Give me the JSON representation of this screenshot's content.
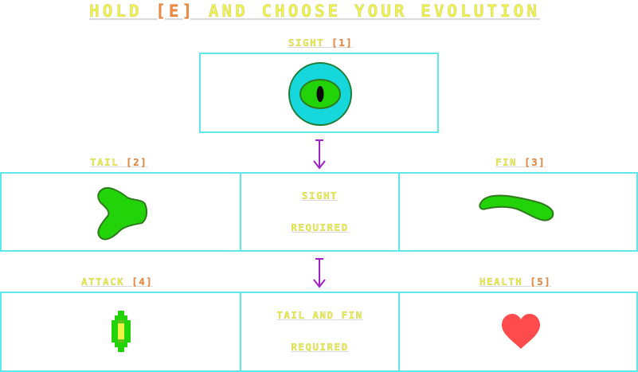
{
  "title": {
    "prefix": "HOLD ",
    "key": "[E]",
    "suffix": " AND CHOOSE YOUR EVOLUTION"
  },
  "options": [
    {
      "name": "SIGHT",
      "hotkey": "[1]",
      "icon": "eye-icon"
    },
    {
      "name": "TAIL",
      "hotkey": "[2]",
      "icon": "tail-icon"
    },
    {
      "name": "FIN",
      "hotkey": "[3]",
      "icon": "fin-icon"
    },
    {
      "name": "ATTACK",
      "hotkey": "[4]",
      "icon": "spike-icon"
    },
    {
      "name": "HEALTH",
      "hotkey": "[5]",
      "icon": "heart-icon"
    }
  ],
  "requirements": {
    "row2": [
      "SIGHT",
      "REQUIRED"
    ],
    "row3": [
      "TAIL AND FIN",
      "REQUIRED"
    ]
  },
  "colors": {
    "label_yellow": "#eef24a",
    "hotkey_orange": "#f28a3a",
    "box_border": "#5fe8ec",
    "arrow_purple": "#a020c8",
    "creature_green": "#22d30a",
    "creature_outline": "#2f7a1e",
    "eye_cyan": "#16d8dc",
    "heart_red": "#ff4b4b"
  }
}
